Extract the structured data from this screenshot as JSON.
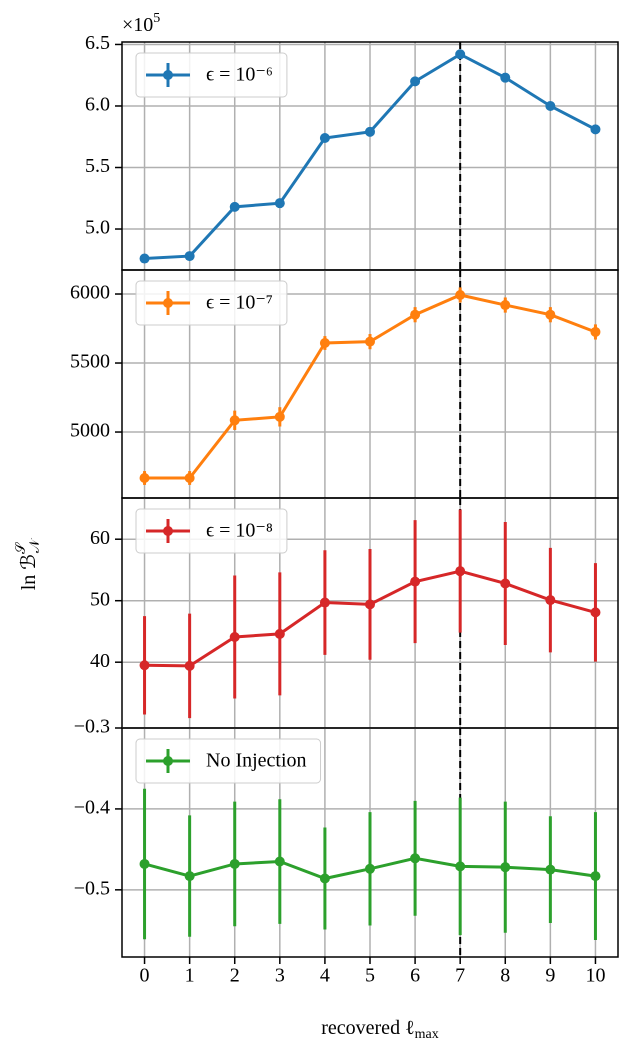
{
  "ylabel": {
    "text": "ln ℬ",
    "sup": "𝒮",
    "sub": "𝒩"
  },
  "chart_data": [
    {
      "type": "line",
      "offset_text": "×10",
      "offset_sup": "5",
      "legend": "upper left",
      "grid": true,
      "vline": 7,
      "x": [
        0,
        1,
        2,
        3,
        4,
        5,
        6,
        7,
        8,
        9,
        10
      ],
      "xlim": [
        -0.5,
        10.5
      ],
      "xticks": [
        0,
        1,
        2,
        3,
        4,
        5,
        6,
        7,
        8,
        9,
        10
      ],
      "ylim": [
        4.667,
        6.52
      ],
      "yticks": [
        {
          "value": 5.0,
          "label": "5.0"
        },
        5.5,
        {
          "value": 6.0,
          "label": "6.0"
        },
        6.5
      ],
      "series": [
        {
          "name": "ϵ = 10⁻⁶",
          "color": "#1f77b4",
          "values": [
            4.76,
            4.78,
            5.18,
            5.21,
            5.74,
            5.79,
            6.2,
            6.42,
            6.23,
            6.0,
            5.81
          ],
          "errors": [
            0.004,
            0.004,
            0.004,
            0.004,
            0.004,
            0.004,
            0.004,
            0.004,
            0.004,
            0.004,
            0.004
          ]
        }
      ]
    },
    {
      "type": "line",
      "legend": "upper left",
      "grid": true,
      "vline": 7,
      "x": [
        0,
        1,
        2,
        3,
        4,
        5,
        6,
        7,
        8,
        9,
        10
      ],
      "xlim": [
        -0.5,
        10.5
      ],
      "xticks": [
        0,
        1,
        2,
        3,
        4,
        5,
        6,
        7,
        8,
        9,
        10
      ],
      "ylim": [
        4522,
        6174
      ],
      "yticks": [
        5000,
        5500,
        6000
      ],
      "series": [
        {
          "name": "ϵ = 10⁻⁷",
          "color": "#ff7f0e",
          "values": [
            4667,
            4667,
            5085,
            5110,
            5645,
            5655,
            5850,
            5993,
            5920,
            5850,
            5725
          ],
          "errors": [
            50,
            50,
            70,
            70,
            50,
            55,
            55,
            55,
            55,
            55,
            55
          ]
        }
      ]
    },
    {
      "type": "line",
      "legend": "upper left",
      "grid": true,
      "vline": 7,
      "x": [
        0,
        1,
        2,
        3,
        4,
        5,
        6,
        7,
        8,
        9,
        10
      ],
      "xlim": [
        -0.5,
        10.5
      ],
      "xticks": [
        0,
        1,
        2,
        3,
        4,
        5,
        6,
        7,
        8,
        9,
        10
      ],
      "ylim": [
        29.3,
        66.7
      ],
      "yticks": [
        40,
        50,
        60
      ],
      "series": [
        {
          "name": "ϵ = 10⁻⁸",
          "color": "#d62728",
          "values": [
            39.5,
            39.4,
            44.1,
            44.6,
            49.7,
            49.4,
            53.1,
            54.8,
            52.8,
            50.1,
            48.1
          ],
          "errors": [
            8,
            8.5,
            10,
            10,
            8.5,
            9,
            10,
            10,
            10,
            8.5,
            8
          ]
        }
      ]
    },
    {
      "type": "line",
      "legend": "upper left",
      "grid": true,
      "vline": 7,
      "x": [
        0,
        1,
        2,
        3,
        4,
        5,
        6,
        7,
        8,
        9,
        10
      ],
      "xlim": [
        -0.5,
        10.5
      ],
      "xticks": [
        0,
        1,
        2,
        3,
        4,
        5,
        6,
        7,
        8,
        9,
        10
      ],
      "xlabel": {
        "text": "recovered ℓ",
        "sub": "max"
      },
      "ylim": [
        -0.583,
        -0.3
      ],
      "yticks": [
        {
          "value": -0.3,
          "label": "−0.3"
        },
        {
          "value": -0.4,
          "label": "−0.4"
        },
        {
          "value": -0.5,
          "label": "−0.5"
        }
      ],
      "series": [
        {
          "name": "No Injection",
          "color": "#2ca02c",
          "values": [
            -0.468,
            -0.483,
            -0.468,
            -0.465,
            -0.486,
            -0.474,
            -0.461,
            -0.471,
            -0.472,
            -0.475,
            -0.483
          ],
          "errors": [
            0.093,
            0.075,
            0.077,
            0.077,
            0.063,
            0.07,
            0.071,
            0.085,
            0.081,
            0.066,
            0.079
          ]
        }
      ]
    }
  ]
}
